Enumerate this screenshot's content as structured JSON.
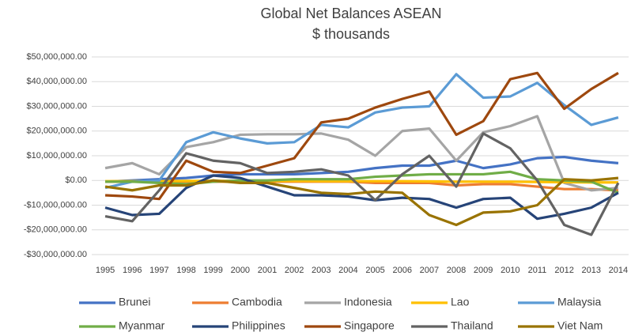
{
  "chart_data": {
    "type": "line",
    "title": "Global Net Balances ASEAN",
    "subtitle": "$ thousands",
    "categories": [
      "1995",
      "1996",
      "1997",
      "1998",
      "1999",
      "2000",
      "2001",
      "2002",
      "2003",
      "2004",
      "2005",
      "2006",
      "2007",
      "2008",
      "2009",
      "2010",
      "2011",
      "2012",
      "2013",
      "2014"
    ],
    "ylim": [
      -30000000,
      50000000
    ],
    "yticks": [
      {
        "value": -30000000,
        "label": "-$30,000,000.00"
      },
      {
        "value": -20000000,
        "label": "-$20,000,000.00"
      },
      {
        "value": -10000000,
        "label": "-$10,000,000.00"
      },
      {
        "value": 0,
        "label": "$0.00"
      },
      {
        "value": 10000000,
        "label": "$10,000,000.00"
      },
      {
        "value": 20000000,
        "label": "$20,000,000.00"
      },
      {
        "value": 30000000,
        "label": "$30,000,000.00"
      },
      {
        "value": 40000000,
        "label": "$40,000,000.00"
      },
      {
        "value": 50000000,
        "label": "$50,000,000.00"
      }
    ],
    "grid": true,
    "legend": "bottom",
    "series": [
      {
        "name": "Brunei",
        "color": "#4472c4",
        "values": [
          -500000,
          0,
          500000,
          1000000,
          2000000,
          2500000,
          2500000,
          2500000,
          3000000,
          3500000,
          5000000,
          6000000,
          6000000,
          8000000,
          5000000,
          6500000,
          9000000,
          9500000,
          8000000,
          7000000
        ]
      },
      {
        "name": "Cambodia",
        "color": "#ed7d31",
        "values": [
          -500000,
          -500000,
          -500000,
          -500000,
          -500000,
          -500000,
          -500000,
          -500000,
          -500000,
          -500000,
          -1000000,
          -1000000,
          -1000000,
          -2000000,
          -1500000,
          -1500000,
          -2500000,
          -3500000,
          -3500000,
          -4000000
        ]
      },
      {
        "name": "Indonesia",
        "color": "#a5a5a5",
        "values": [
          5000000,
          7000000,
          2500000,
          13500000,
          15500000,
          18500000,
          18700000,
          18700000,
          19000000,
          16500000,
          10000000,
          20000000,
          21000000,
          8000000,
          19500000,
          22000000,
          26000000,
          -1000000,
          -4000000,
          -3000000
        ]
      },
      {
        "name": "Lao",
        "color": "#ffc000",
        "values": [
          -300000,
          -300000,
          -300000,
          -200000,
          -200000,
          -200000,
          -200000,
          -200000,
          -300000,
          -300000,
          -300000,
          -300000,
          -400000,
          -500000,
          -500000,
          -500000,
          -600000,
          -700000,
          -800000,
          -800000
        ]
      },
      {
        "name": "Malaysia",
        "color": "#5b9bd5",
        "values": [
          -3000000,
          -500000,
          0,
          15500000,
          19500000,
          17000000,
          15000000,
          15500000,
          22500000,
          21500000,
          27500000,
          29500000,
          30000000,
          43000000,
          33500000,
          34000000,
          39500000,
          30500000,
          22500000,
          25500000
        ]
      },
      {
        "name": "Myanmar",
        "color": "#70ad47",
        "values": [
          -500000,
          -500000,
          -1000000,
          -1500000,
          -500000,
          0,
          0,
          500000,
          500000,
          500000,
          1500000,
          2000000,
          2500000,
          2500000,
          2500000,
          3500000,
          500000,
          0,
          -500000,
          -5000000
        ]
      },
      {
        "name": "Philippines",
        "color": "#264478",
        "values": [
          -11000000,
          -14000000,
          -13500000,
          -3000000,
          2000000,
          1000000,
          -2500000,
          -6000000,
          -6000000,
          -6500000,
          -8000000,
          -7000000,
          -7500000,
          -11000000,
          -7500000,
          -7000000,
          -15500000,
          -13500000,
          -11000000,
          -5000000
        ]
      },
      {
        "name": "Singapore",
        "color": "#9e480e",
        "values": [
          -6000000,
          -6500000,
          -7500000,
          8000000,
          3500000,
          3000000,
          6000000,
          9000000,
          23500000,
          25000000,
          29500000,
          33000000,
          36000000,
          18500000,
          24000000,
          41000000,
          43500000,
          29000000,
          37000000,
          43500000
        ]
      },
      {
        "name": "Thailand",
        "color": "#636363",
        "values": [
          -14500000,
          -16500000,
          -4000000,
          11000000,
          8000000,
          7000000,
          3000000,
          3500000,
          4500000,
          2000000,
          -8000000,
          2500000,
          10000000,
          -2500000,
          19000000,
          13000000,
          0,
          -18000000,
          -22000000,
          -1000000
        ]
      },
      {
        "name": "Viet Nam",
        "color": "#997300",
        "values": [
          -2500000,
          -4000000,
          -2000000,
          -2000000,
          0,
          -1000000,
          -1000000,
          -3000000,
          -5000000,
          -5500000,
          -4500000,
          -5000000,
          -14000000,
          -18000000,
          -13000000,
          -12500000,
          -10000000,
          500000,
          0,
          1000000
        ]
      }
    ]
  }
}
